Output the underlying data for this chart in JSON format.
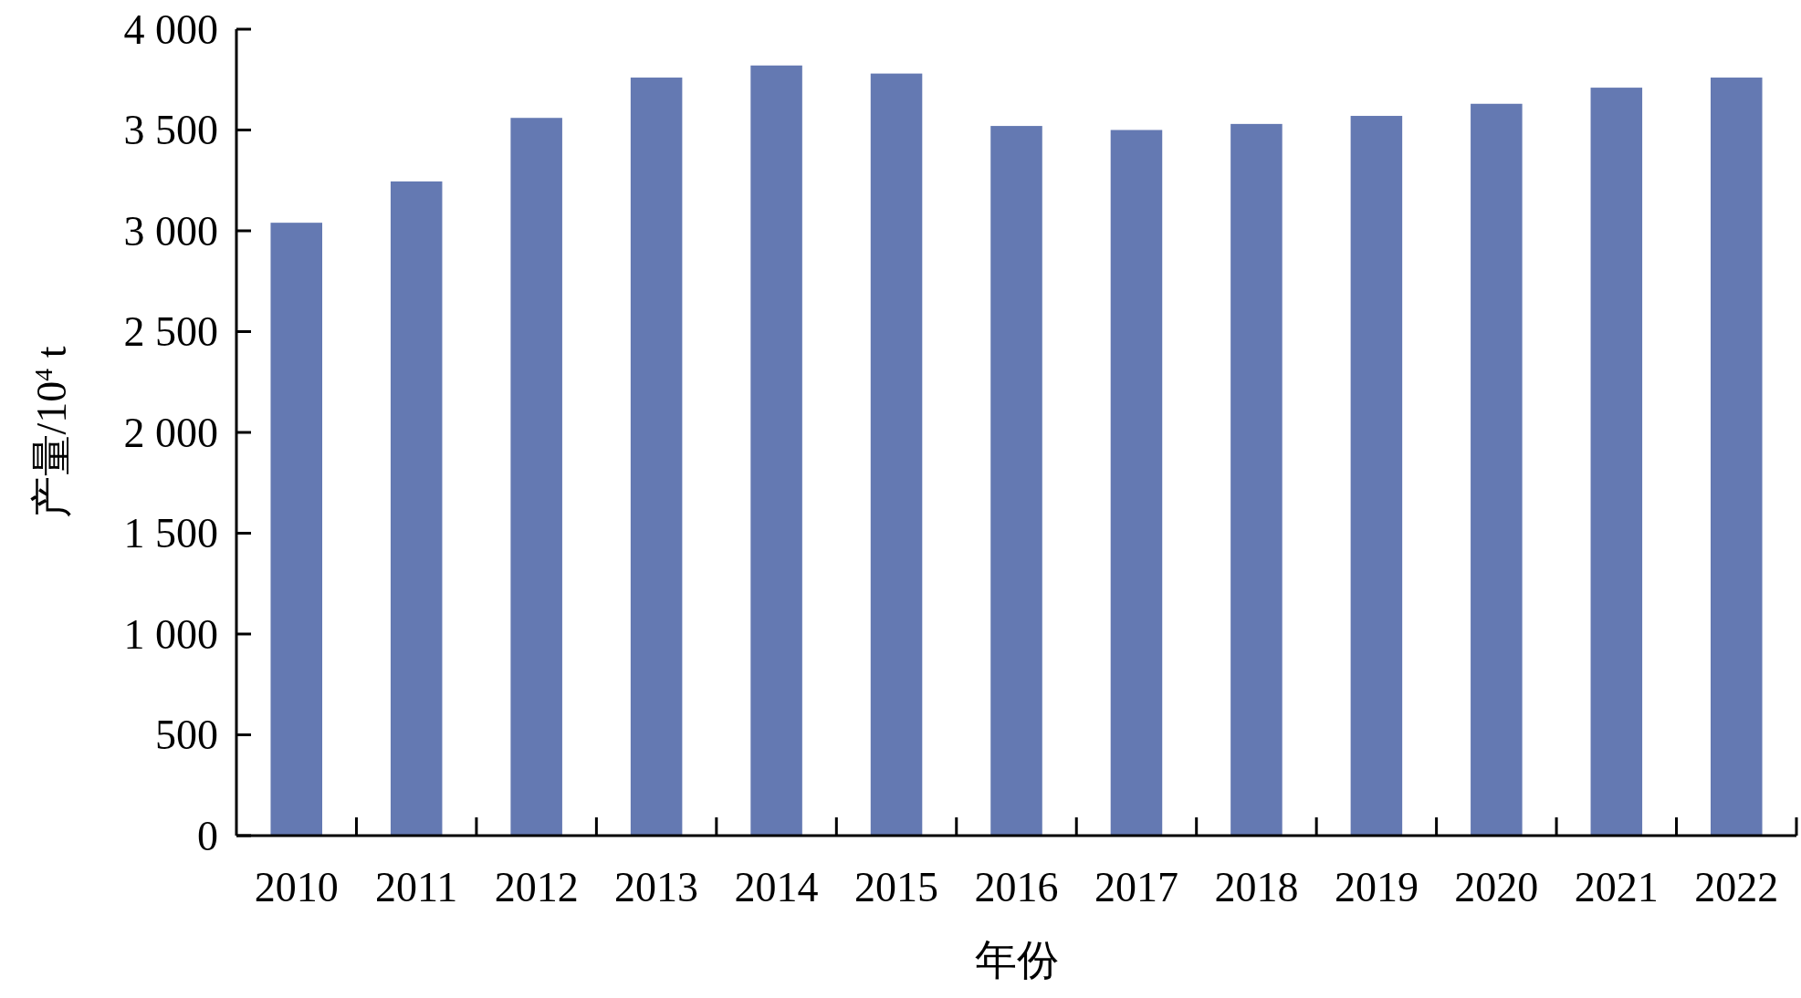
{
  "chart_data": {
    "type": "bar",
    "xlabel": "年份",
    "ylabel": "产量/10$^{4}$ t",
    "categories": [
      "2010",
      "2011",
      "2012",
      "2013",
      "2014",
      "2015",
      "2016",
      "2017",
      "2018",
      "2019",
      "2020",
      "2021",
      "2022"
    ],
    "values": [
      3040,
      3245,
      3560,
      3760,
      3820,
      3780,
      3520,
      3500,
      3530,
      3570,
      3630,
      3710,
      3760
    ],
    "color": "#6479b2",
    "ylim": [
      0,
      4000
    ],
    "yticks": [
      0,
      500,
      {
        "value": 1000,
        "label": "1 000"
      },
      {
        "value": 1500,
        "label": "1 500"
      },
      {
        "value": 2000,
        "label": "2 000"
      },
      {
        "value": 2500,
        "label": "2 500"
      },
      {
        "value": 3000,
        "label": "3 000"
      },
      {
        "value": 3500,
        "label": "3 500"
      },
      {
        "value": 4000,
        "label": "4 000"
      }
    ]
  }
}
